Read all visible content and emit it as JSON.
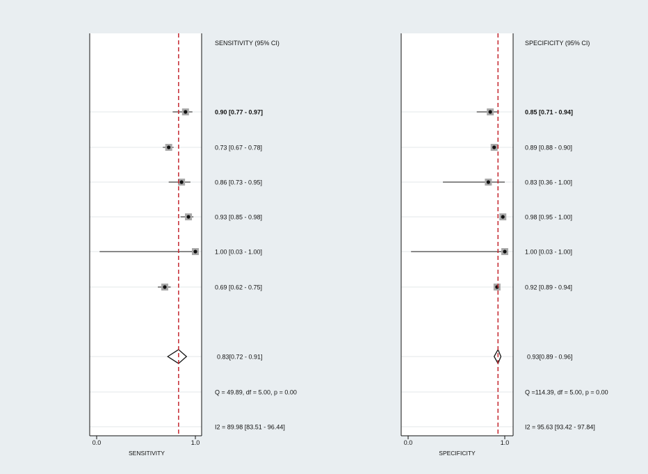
{
  "colors": {
    "background": "#e9eef1",
    "plot_background": "#ffffff",
    "reference_line": "#c4262e",
    "box_fill": "#a9a9a9",
    "grid": "#e3e7ea",
    "ink": "#111111"
  },
  "chart_data": [
    {
      "type": "forest",
      "column_header": "SENSITIVITY (95% CI)",
      "xlabel": "SENSITIVITY",
      "xlim": [
        0,
        1
      ],
      "xticks": [
        "0.0",
        "1.0"
      ],
      "pooled_reference": 0.83,
      "studies": [
        {
          "estimate": 0.9,
          "lower": 0.77,
          "upper": 0.97,
          "label": "0.90 [0.77 - 0.97]"
        },
        {
          "estimate": 0.73,
          "lower": 0.67,
          "upper": 0.78,
          "label": "0.73 [0.67 - 0.78]"
        },
        {
          "estimate": 0.86,
          "lower": 0.73,
          "upper": 0.95,
          "label": "0.86 [0.73 - 0.95]"
        },
        {
          "estimate": 0.93,
          "lower": 0.85,
          "upper": 0.98,
          "label": "0.93 [0.85 - 0.98]"
        },
        {
          "estimate": 1.0,
          "lower": 0.03,
          "upper": 1.0,
          "label": "1.00 [0.03 - 1.00]"
        },
        {
          "estimate": 0.69,
          "lower": 0.62,
          "upper": 0.75,
          "label": "0.69 [0.62 - 0.75]"
        }
      ],
      "pooled": {
        "estimate": 0.83,
        "lower": 0.72,
        "upper": 0.91,
        "label": "0.83[0.72 - 0.91]"
      },
      "heterogeneity": "Q = 49.89, df = 5.00, p =  0.00",
      "i2": "I2 = 89.98 [83.51 - 96.44]"
    },
    {
      "type": "forest",
      "column_header": "SPECIFICITY (95% CI)",
      "xlabel": "SPECIFICITY",
      "xlim": [
        0,
        1
      ],
      "xticks": [
        "0.0",
        "1.0"
      ],
      "pooled_reference": 0.93,
      "studies": [
        {
          "estimate": 0.85,
          "lower": 0.71,
          "upper": 0.94,
          "label": "0.85 [0.71 - 0.94]"
        },
        {
          "estimate": 0.89,
          "lower": 0.88,
          "upper": 0.9,
          "label": "0.89 [0.88 - 0.90]"
        },
        {
          "estimate": 0.83,
          "lower": 0.36,
          "upper": 1.0,
          "label": "0.83 [0.36 - 1.00]"
        },
        {
          "estimate": 0.98,
          "lower": 0.95,
          "upper": 1.0,
          "label": "0.98 [0.95 - 1.00]"
        },
        {
          "estimate": 1.0,
          "lower": 0.03,
          "upper": 1.0,
          "label": "1.00 [0.03 - 1.00]"
        },
        {
          "estimate": 0.92,
          "lower": 0.89,
          "upper": 0.94,
          "label": "0.92 [0.89 - 0.94]"
        }
      ],
      "pooled": {
        "estimate": 0.93,
        "lower": 0.89,
        "upper": 0.96,
        "label": "0.93[0.89 - 0.96]"
      },
      "heterogeneity": "Q =114.39, df = 5.00, p =  0.00",
      "i2": "I2 = 95.63 [93.42 - 97.84]"
    }
  ]
}
